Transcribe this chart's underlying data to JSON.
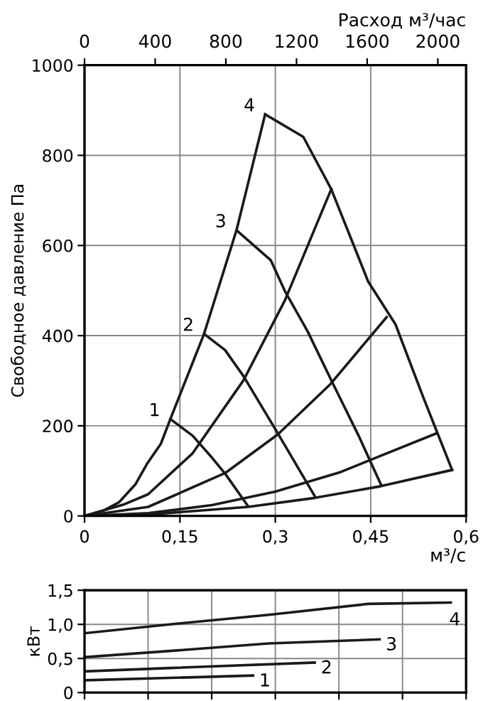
{
  "chart_data": [
    {
      "type": "line",
      "ylabel": "Свободное давление Па",
      "xlabel": "м³/с",
      "x2label": "Расход м³/час",
      "xlim": [
        0,
        0.6
      ],
      "xticks": [
        0,
        {
          "value": 0.15,
          "label": "0,15"
        },
        {
          "value": 0.3,
          "label": "0,3"
        },
        {
          "value": 0.45,
          "label": "0,45"
        },
        {
          "value": 0.6,
          "label": "0,6"
        }
      ],
      "x2lim": [
        0,
        2160
      ],
      "x2ticks": [
        0,
        400,
        800,
        1200,
        1600,
        2000
      ],
      "ylim": [
        0,
        1000
      ],
      "yticks": [
        0,
        200,
        400,
        600,
        800,
        1000
      ],
      "grid": true,
      "marker": "none",
      "line_style": "solid",
      "series": [
        {
          "color": "#1a1a1a",
          "x": [
            0,
            0.03,
            0.054,
            0.08,
            0.098,
            0.12,
            0.135,
            0.188,
            0.239,
            0.284
          ],
          "values": [
            0,
            12,
            30,
            70,
            115,
            160,
            215,
            404,
            634,
            891
          ]
        },
        {
          "color": "#1a1a1a",
          "x": [
            0.135,
            0.17,
            0.2,
            0.221,
            0.257
          ],
          "values": [
            215,
            178,
            130,
            94,
            22
          ]
        },
        {
          "color": "#1a1a1a",
          "x": [
            0.188,
            0.221,
            0.25,
            0.304,
            0.362
          ],
          "values": [
            404,
            368,
            310,
            183,
            44
          ]
        },
        {
          "color": "#1a1a1a",
          "x": [
            0.239,
            0.293,
            0.315,
            0.351,
            0.387,
            0.431,
            0.466
          ],
          "values": [
            634,
            567,
            499,
            409,
            304,
            178,
            70
          ]
        },
        {
          "color": "#1a1a1a",
          "x": [
            0.284,
            0.344,
            0.388,
            0.446,
            0.489,
            0.533,
            0.578
          ],
          "values": [
            891,
            841,
            725,
            520,
            425,
            262,
            102
          ]
        },
        {
          "color": "#1a1a1a",
          "x": [
            0,
            0.061,
            0.1,
            0.17,
            0.25,
            0.315,
            0.388
          ],
          "values": [
            0,
            25,
            48,
            139,
            301,
            478,
            725
          ]
        },
        {
          "color": "#1a1a1a",
          "x": [
            0,
            0.1,
            0.221,
            0.304,
            0.387,
            0.475
          ],
          "values": [
            0,
            20,
            95,
            181,
            293,
            441
          ]
        },
        {
          "color": "#1a1a1a",
          "x": [
            0,
            0.1,
            0.2,
            0.3,
            0.4,
            0.553
          ],
          "values": [
            0,
            6,
            24,
            54,
            96,
            183
          ]
        },
        {
          "color": "#1a1a1a",
          "x": [
            0,
            0.1,
            0.257,
            0.362,
            0.466,
            0.578
          ],
          "values": [
            0,
            3,
            20,
            40,
            66,
            102
          ]
        }
      ],
      "annotations": [
        {
          "text": "1",
          "x": 0.135,
          "y": 215
        },
        {
          "text": "2",
          "x": 0.188,
          "y": 404
        },
        {
          "text": "3",
          "x": 0.239,
          "y": 634
        },
        {
          "text": "4",
          "x": 0.284,
          "y": 891
        }
      ]
    },
    {
      "type": "line",
      "ylabel": "кВт",
      "xlim": [
        0,
        0.6
      ],
      "ylim": [
        0,
        1.5
      ],
      "yticks": [
        0,
        {
          "value": 0.5,
          "label": "0,5"
        },
        {
          "value": 1.0,
          "label": "1,0"
        },
        {
          "value": 1.5,
          "label": "1,5"
        }
      ],
      "tick_labels": "y",
      "grid": true,
      "marker": "none",
      "line_style": "solid",
      "series": [
        {
          "color": "#1a1a1a",
          "x": [
            0,
            0.265
          ],
          "values": [
            0.18,
            0.25
          ]
        },
        {
          "color": "#1a1a1a",
          "x": [
            0,
            0.134,
            0.362
          ],
          "values": [
            0.31,
            0.36,
            0.44
          ]
        },
        {
          "color": "#1a1a1a",
          "x": [
            0,
            0.134,
            0.29,
            0.464
          ],
          "values": [
            0.52,
            0.61,
            0.72,
            0.78
          ]
        },
        {
          "color": "#1a1a1a",
          "x": [
            0,
            0.134,
            0.29,
            0.446,
            0.576
          ],
          "values": [
            0.87,
            1.0,
            1.14,
            1.3,
            1.32
          ]
        }
      ],
      "annotations": [
        {
          "text": "1",
          "x": 0.265,
          "y": 0.25
        },
        {
          "text": "2",
          "x": 0.362,
          "y": 0.44
        },
        {
          "text": "3",
          "x": 0.464,
          "y": 0.78
        },
        {
          "text": "4",
          "x": 0.576,
          "y": 1.32
        }
      ]
    }
  ]
}
